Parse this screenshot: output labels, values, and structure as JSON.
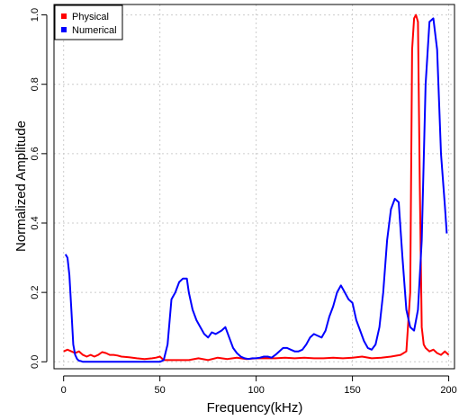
{
  "chart_data": {
    "type": "line",
    "title": "",
    "xlabel": "Frequency(kHz)",
    "ylabel": "Normalized Amplitude",
    "xlim": [
      -5,
      203
    ],
    "ylim": [
      -0.02,
      1.03
    ],
    "xticks": [
      0,
      50,
      100,
      150,
      200
    ],
    "yticks": [
      0.0,
      0.2,
      0.4,
      0.6,
      0.8,
      1.0
    ],
    "xtick_labels": [
      "0",
      "50",
      "100",
      "150",
      "200"
    ],
    "ytick_labels": [
      "0.0",
      "0.2",
      "0.4",
      "0.6",
      "0.8",
      "1.0"
    ],
    "grid": true,
    "legend_position": "top-left",
    "series": [
      {
        "name": "Physical",
        "color": "#ff0000",
        "x": [
          0,
          2,
          4,
          6,
          8,
          10,
          12,
          14,
          16,
          18,
          20,
          22,
          24,
          26,
          28,
          30,
          34,
          38,
          42,
          46,
          48,
          50,
          52,
          55,
          60,
          65,
          70,
          75,
          80,
          85,
          90,
          95,
          100,
          105,
          110,
          115,
          120,
          125,
          130,
          135,
          140,
          145,
          150,
          155,
          160,
          165,
          170,
          175,
          178,
          180,
          181,
          182,
          183,
          184,
          185,
          186,
          187,
          188,
          190,
          192,
          194,
          196,
          198,
          200
        ],
        "y": [
          0.03,
          0.035,
          0.03,
          0.025,
          0.03,
          0.02,
          0.015,
          0.02,
          0.015,
          0.02,
          0.028,
          0.025,
          0.02,
          0.02,
          0.018,
          0.015,
          0.013,
          0.01,
          0.008,
          0.01,
          0.012,
          0.015,
          0.005,
          0.005,
          0.005,
          0.005,
          0.01,
          0.005,
          0.012,
          0.008,
          0.012,
          0.008,
          0.01,
          0.01,
          0.01,
          0.012,
          0.01,
          0.012,
          0.01,
          0.01,
          0.012,
          0.01,
          0.012,
          0.015,
          0.01,
          0.012,
          0.015,
          0.02,
          0.03,
          0.2,
          0.9,
          0.99,
          1.0,
          0.98,
          0.5,
          0.1,
          0.05,
          0.04,
          0.03,
          0.035,
          0.025,
          0.02,
          0.03,
          0.02
        ]
      },
      {
        "name": "Numerical",
        "color": "#0000ff",
        "x": [
          1,
          2,
          3,
          4,
          5,
          6,
          7,
          8,
          9,
          10,
          12,
          15,
          20,
          30,
          40,
          50,
          52,
          54,
          56,
          58,
          60,
          62,
          64,
          65,
          67,
          69,
          71,
          73,
          75,
          77,
          79,
          82,
          84,
          86,
          88,
          90,
          92,
          94,
          96,
          98,
          100,
          102,
          104,
          106,
          108,
          110,
          112,
          114,
          116,
          118,
          120,
          122,
          124,
          126,
          128,
          130,
          132,
          134,
          136,
          138,
          140,
          142,
          144,
          146,
          148,
          150,
          152,
          154,
          156,
          158,
          160,
          162,
          164,
          166,
          168,
          170,
          172,
          174,
          176,
          178,
          180,
          182,
          184,
          186,
          188,
          190,
          192,
          194,
          196,
          198,
          199
        ],
        "y": [
          0.31,
          0.3,
          0.25,
          0.15,
          0.05,
          0.02,
          0.008,
          0.003,
          0.002,
          0.0,
          0.0,
          0.0,
          0.0,
          0.0,
          0.0,
          0.0,
          0.005,
          0.05,
          0.18,
          0.2,
          0.23,
          0.24,
          0.24,
          0.2,
          0.15,
          0.12,
          0.1,
          0.08,
          0.07,
          0.085,
          0.08,
          0.09,
          0.1,
          0.07,
          0.04,
          0.025,
          0.015,
          0.01,
          0.008,
          0.01,
          0.01,
          0.012,
          0.015,
          0.015,
          0.012,
          0.02,
          0.03,
          0.04,
          0.04,
          0.035,
          0.03,
          0.03,
          0.035,
          0.05,
          0.07,
          0.08,
          0.075,
          0.07,
          0.09,
          0.13,
          0.16,
          0.2,
          0.22,
          0.2,
          0.18,
          0.17,
          0.12,
          0.09,
          0.06,
          0.04,
          0.035,
          0.05,
          0.1,
          0.2,
          0.35,
          0.44,
          0.47,
          0.46,
          0.3,
          0.15,
          0.1,
          0.09,
          0.15,
          0.35,
          0.8,
          0.98,
          0.99,
          0.9,
          0.6,
          0.45,
          0.37
        ]
      }
    ]
  }
}
